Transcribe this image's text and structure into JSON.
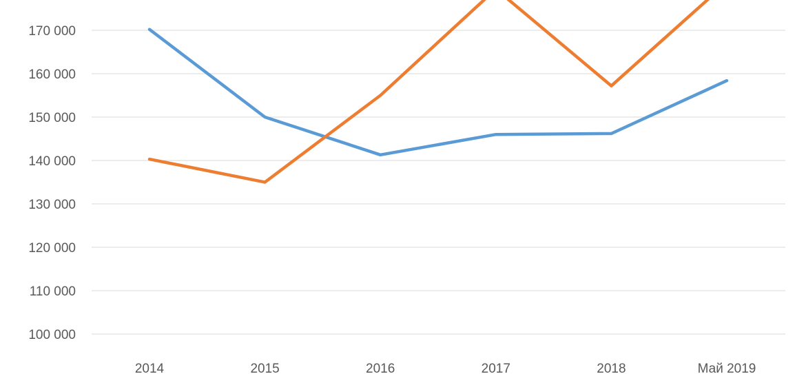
{
  "chart_data": {
    "type": "line",
    "categories": [
      "2014",
      "2015",
      "2016",
      "2017",
      "2018",
      "Май 2019"
    ],
    "y_ticks": [
      "100 000",
      "110 000",
      "120 000",
      "130 000",
      "140 000",
      "150 000",
      "160 000",
      "170 000"
    ],
    "y_tick_values": [
      100000,
      110000,
      120000,
      130000,
      140000,
      150000,
      160000,
      170000
    ],
    "ylim": [
      100000,
      178000
    ],
    "grid": true,
    "series": [
      {
        "color": "#5b9bd5",
        "values": [
          170200,
          150000,
          141300,
          146000,
          146200,
          158400
        ]
      },
      {
        "color": "#ed7d31",
        "values": [
          140300,
          135000,
          155000,
          179500,
          157200,
          181000
        ]
      }
    ]
  }
}
